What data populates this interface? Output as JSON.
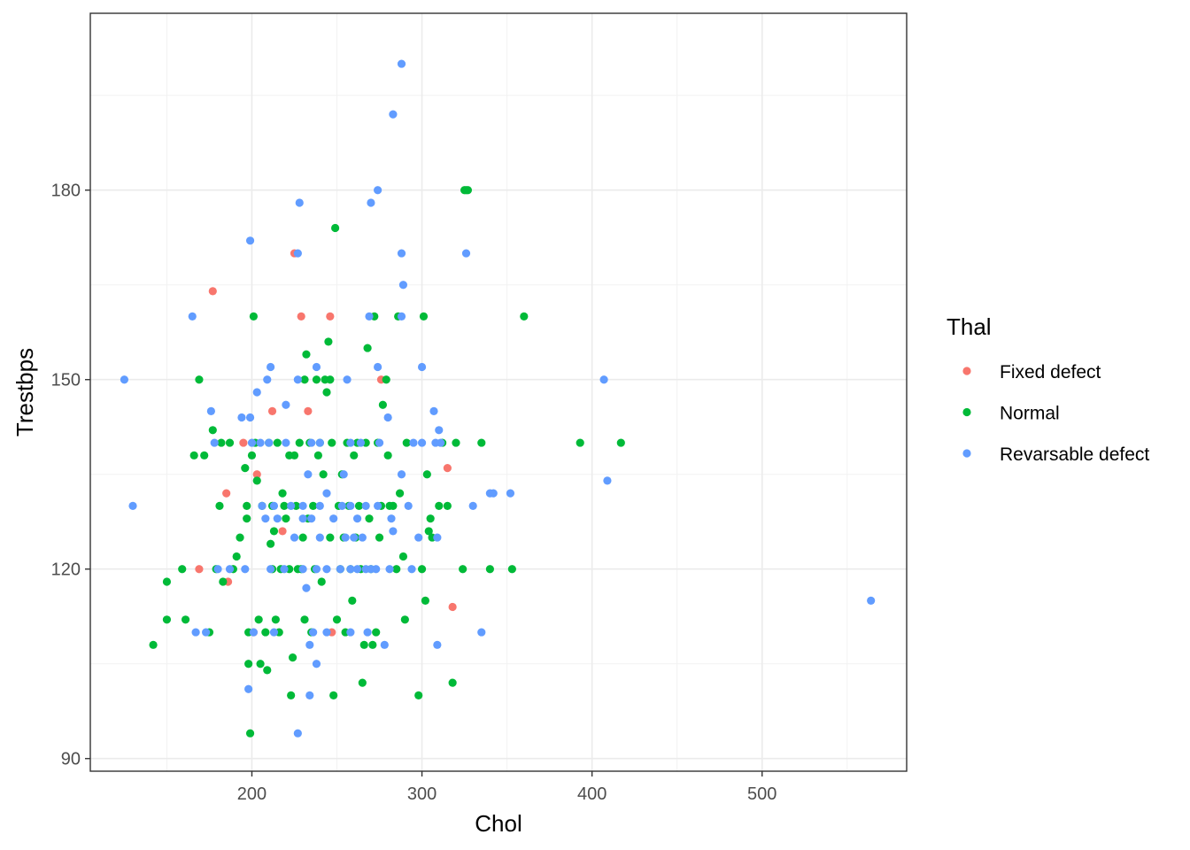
{
  "chart_data": {
    "type": "scatter",
    "xlabel": "Chol",
    "ylabel": "Trestbps",
    "xlim": [
      105,
      585
    ],
    "ylim": [
      88,
      208
    ],
    "x_ticks": [
      200,
      300,
      400,
      500
    ],
    "y_ticks": [
      90,
      120,
      150,
      180
    ],
    "grid": true,
    "legend": {
      "title": "Thal",
      "position": "right",
      "entries": [
        "Fixed defect",
        "Normal",
        "Revarsable defect"
      ]
    },
    "series": [
      {
        "name": "Fixed defect",
        "color": "#F8766D",
        "points": [
          [
            177,
            164
          ],
          [
            225,
            170
          ],
          [
            229,
            160
          ],
          [
            246,
            160
          ],
          [
            233,
            145
          ],
          [
            212,
            145
          ],
          [
            276,
            150
          ],
          [
            195,
            140
          ],
          [
            203,
            135
          ],
          [
            218,
            126
          ],
          [
            185,
            132
          ],
          [
            169,
            120
          ],
          [
            186,
            118
          ],
          [
            201,
            110
          ],
          [
            247,
            110
          ],
          [
            315,
            136
          ],
          [
            318,
            114
          ]
        ]
      },
      {
        "name": "Normal",
        "color": "#00BA38",
        "points": [
          [
            142,
            108
          ],
          [
            150,
            118
          ],
          [
            150,
            112
          ],
          [
            159,
            120
          ],
          [
            161,
            112
          ],
          [
            166,
            138
          ],
          [
            169,
            150
          ],
          [
            172,
            138
          ],
          [
            177,
            142
          ],
          [
            175,
            110
          ],
          [
            179,
            120
          ],
          [
            181,
            130
          ],
          [
            182,
            140
          ],
          [
            183,
            118
          ],
          [
            187,
            140
          ],
          [
            189,
            120
          ],
          [
            191,
            122
          ],
          [
            193,
            125
          ],
          [
            196,
            136
          ],
          [
            197,
            130
          ],
          [
            197,
            128
          ],
          [
            198,
            110
          ],
          [
            198,
            105
          ],
          [
            199,
            94
          ],
          [
            200,
            138
          ],
          [
            201,
            160
          ],
          [
            202,
            140
          ],
          [
            203,
            134
          ],
          [
            204,
            112
          ],
          [
            205,
            105
          ],
          [
            206,
            130
          ],
          [
            208,
            110
          ],
          [
            209,
            104
          ],
          [
            210,
            140
          ],
          [
            211,
            124
          ],
          [
            212,
            120
          ],
          [
            212,
            130
          ],
          [
            213,
            126
          ],
          [
            214,
            112
          ],
          [
            215,
            140
          ],
          [
            216,
            110
          ],
          [
            217,
            120
          ],
          [
            218,
            132
          ],
          [
            219,
            130
          ],
          [
            220,
            128
          ],
          [
            222,
            138
          ],
          [
            222,
            120
          ],
          [
            223,
            100
          ],
          [
            224,
            106
          ],
          [
            225,
            138
          ],
          [
            226,
            130
          ],
          [
            227,
            120
          ],
          [
            228,
            140
          ],
          [
            229,
            120
          ],
          [
            230,
            125
          ],
          [
            231,
            112
          ],
          [
            231,
            150
          ],
          [
            232,
            154
          ],
          [
            233,
            128
          ],
          [
            234,
            140
          ],
          [
            235,
            110
          ],
          [
            236,
            130
          ],
          [
            237,
            120
          ],
          [
            238,
            150
          ],
          [
            239,
            138
          ],
          [
            240,
            140
          ],
          [
            241,
            118
          ],
          [
            242,
            135
          ],
          [
            243,
            150
          ],
          [
            244,
            148
          ],
          [
            245,
            156
          ],
          [
            246,
            125
          ],
          [
            246,
            150
          ],
          [
            247,
            140
          ],
          [
            248,
            100
          ],
          [
            249,
            174
          ],
          [
            250,
            112
          ],
          [
            251,
            130
          ],
          [
            252,
            120
          ],
          [
            253,
            135
          ],
          [
            254,
            125
          ],
          [
            255,
            110
          ],
          [
            256,
            140
          ],
          [
            257,
            130
          ],
          [
            258,
            120
          ],
          [
            259,
            115
          ],
          [
            260,
            138
          ],
          [
            261,
            125
          ],
          [
            262,
            140
          ],
          [
            263,
            130
          ],
          [
            264,
            120
          ],
          [
            265,
            102
          ],
          [
            266,
            108
          ],
          [
            267,
            140
          ],
          [
            268,
            155
          ],
          [
            269,
            128
          ],
          [
            270,
            120
          ],
          [
            271,
            108
          ],
          [
            272,
            160
          ],
          [
            273,
            110
          ],
          [
            274,
            140
          ],
          [
            275,
            125
          ],
          [
            276,
            130
          ],
          [
            277,
            146
          ],
          [
            279,
            150
          ],
          [
            280,
            138
          ],
          [
            281,
            130
          ],
          [
            283,
            130
          ],
          [
            285,
            120
          ],
          [
            286,
            160
          ],
          [
            287,
            132
          ],
          [
            289,
            122
          ],
          [
            290,
            112
          ],
          [
            291,
            140
          ],
          [
            298,
            100
          ],
          [
            300,
            120
          ],
          [
            301,
            160
          ],
          [
            302,
            115
          ],
          [
            303,
            135
          ],
          [
            304,
            126
          ],
          [
            305,
            128
          ],
          [
            306,
            125
          ],
          [
            310,
            130
          ],
          [
            312,
            140
          ],
          [
            315,
            130
          ],
          [
            318,
            102
          ],
          [
            320,
            140
          ],
          [
            324,
            120
          ],
          [
            325,
            180
          ],
          [
            326,
            180
          ],
          [
            327,
            180
          ],
          [
            335,
            140
          ],
          [
            340,
            120
          ],
          [
            353,
            120
          ],
          [
            360,
            160
          ],
          [
            393,
            140
          ],
          [
            417,
            140
          ]
        ]
      },
      {
        "name": "Revarsable defect",
        "color": "#619CFF",
        "points": [
          [
            288,
            200
          ],
          [
            283,
            192
          ],
          [
            274,
            180
          ],
          [
            270,
            178
          ],
          [
            228,
            178
          ],
          [
            199,
            172
          ],
          [
            227,
            170
          ],
          [
            288,
            170
          ],
          [
            326,
            170
          ],
          [
            289,
            165
          ],
          [
            165,
            160
          ],
          [
            269,
            160
          ],
          [
            288,
            160
          ],
          [
            211,
            152
          ],
          [
            209,
            150
          ],
          [
            227,
            150
          ],
          [
            238,
            152
          ],
          [
            256,
            150
          ],
          [
            274,
            152
          ],
          [
            300,
            152
          ],
          [
            125,
            150
          ],
          [
            407,
            150
          ],
          [
            203,
            148
          ],
          [
            220,
            146
          ],
          [
            176,
            145
          ],
          [
            194,
            144
          ],
          [
            199,
            144
          ],
          [
            280,
            144
          ],
          [
            307,
            145
          ],
          [
            178,
            140
          ],
          [
            200,
            140
          ],
          [
            205,
            140
          ],
          [
            210,
            140
          ],
          [
            220,
            140
          ],
          [
            235,
            140
          ],
          [
            240,
            140
          ],
          [
            258,
            140
          ],
          [
            264,
            140
          ],
          [
            275,
            140
          ],
          [
            295,
            140
          ],
          [
            300,
            140
          ],
          [
            308,
            140
          ],
          [
            311,
            140
          ],
          [
            310,
            142
          ],
          [
            233,
            135
          ],
          [
            254,
            135
          ],
          [
            288,
            135
          ],
          [
            409,
            134
          ],
          [
            206,
            130
          ],
          [
            213,
            130
          ],
          [
            223,
            130
          ],
          [
            230,
            130
          ],
          [
            235,
            128
          ],
          [
            240,
            130
          ],
          [
            244,
            132
          ],
          [
            248,
            128
          ],
          [
            253,
            130
          ],
          [
            258,
            130
          ],
          [
            262,
            128
          ],
          [
            267,
            130
          ],
          [
            274,
            130
          ],
          [
            282,
            128
          ],
          [
            292,
            130
          ],
          [
            330,
            130
          ],
          [
            340,
            132
          ],
          [
            342,
            132
          ],
          [
            352,
            132
          ],
          [
            208,
            128
          ],
          [
            215,
            128
          ],
          [
            225,
            125
          ],
          [
            230,
            128
          ],
          [
            240,
            125
          ],
          [
            255,
            125
          ],
          [
            260,
            125
          ],
          [
            265,
            125
          ],
          [
            283,
            126
          ],
          [
            298,
            125
          ],
          [
            309,
            125
          ],
          [
            187,
            120
          ],
          [
            196,
            120
          ],
          [
            211,
            120
          ],
          [
            219,
            120
          ],
          [
            230,
            120
          ],
          [
            232,
            117
          ],
          [
            234,
            108
          ],
          [
            238,
            120
          ],
          [
            244,
            120
          ],
          [
            252,
            120
          ],
          [
            262,
            120
          ],
          [
            267,
            120
          ],
          [
            270,
            120
          ],
          [
            273,
            120
          ],
          [
            281,
            120
          ],
          [
            258,
            120
          ],
          [
            294,
            120
          ],
          [
            180,
            120
          ],
          [
            238,
            105
          ],
          [
            236,
            110
          ],
          [
            244,
            110
          ],
          [
            258,
            110
          ],
          [
            268,
            110
          ],
          [
            278,
            108
          ],
          [
            234,
            100
          ],
          [
            227,
            94
          ],
          [
            198,
            101
          ],
          [
            130,
            130
          ],
          [
            167,
            110
          ],
          [
            173,
            110
          ],
          [
            201,
            110
          ],
          [
            213,
            110
          ],
          [
            309,
            108
          ],
          [
            335,
            110
          ],
          [
            564,
            115
          ]
        ]
      }
    ]
  }
}
